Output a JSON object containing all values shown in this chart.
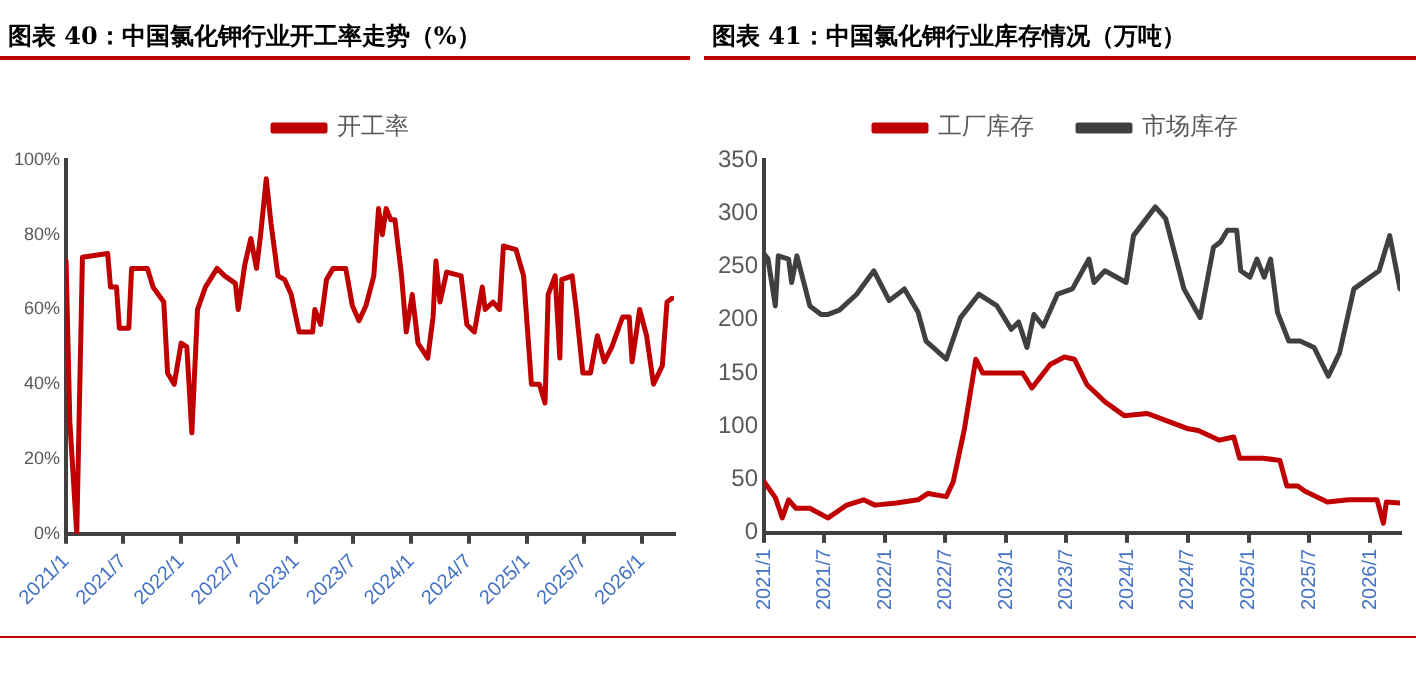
{
  "chart_data": [
    {
      "type": "line",
      "title": "图表 40：中国氯化钾行业开工率走势（%）",
      "legend": "top",
      "marker": "none",
      "line_style": "solid",
      "grid": false,
      "xlim": [
        "2021-01-01",
        "2026-04-13"
      ],
      "xticks": [
        {
          "value": "2021-01-01",
          "label": "2021/1"
        },
        {
          "value": "2021-07-01",
          "label": "2021/7"
        },
        {
          "value": "2022-01-01",
          "label": "2022/1"
        },
        {
          "value": "2022-07-01",
          "label": "2022/7"
        },
        {
          "value": "2023-01-01",
          "label": "2023/1"
        },
        {
          "value": "2023-07-01",
          "label": "2023/7"
        },
        {
          "value": "2024-01-01",
          "label": "2024/1"
        },
        {
          "value": "2024-07-01",
          "label": "2024/7"
        },
        {
          "value": "2025-01-01",
          "label": "2025/1"
        },
        {
          "value": "2025-07-01",
          "label": "2025/7"
        },
        {
          "value": "2026-01-01",
          "label": "2026/1"
        }
      ],
      "ylim": [
        0,
        100
      ],
      "yticks": [
        {
          "value": 0,
          "label": "0%"
        },
        {
          "value": 20,
          "label": "20%"
        },
        {
          "value": 40,
          "label": "40%"
        },
        {
          "value": 60,
          "label": "60%"
        },
        {
          "value": 80,
          "label": "80%"
        },
        {
          "value": 100,
          "label": "100%"
        }
      ],
      "series": [
        {
          "name": "开工率",
          "color": "#c00000",
          "x": [
            "2021-01-01",
            "2021-01-13",
            "2021-02-04",
            "2021-02-22",
            "2021-05-13",
            "2021-05-22",
            "2021-06-10",
            "2021-06-19",
            "2021-07-19",
            "2021-07-28",
            "2021-09-16",
            "2021-10-04",
            "2021-11-07",
            "2021-11-19",
            "2021-12-10",
            "2022-01-01",
            "2022-01-19",
            "2022-02-04",
            "2022-02-22",
            "2022-03-19",
            "2022-04-25",
            "2022-05-19",
            "2022-06-22",
            "2022-07-01",
            "2022-07-22",
            "2022-08-10",
            "2022-08-28",
            "2022-09-10",
            "2022-09-28",
            "2022-10-13",
            "2022-11-04",
            "2022-11-25",
            "2022-12-16",
            "2023-01-10",
            "2023-02-22",
            "2023-03-01",
            "2023-03-19",
            "2023-04-07",
            "2023-04-28",
            "2023-06-07",
            "2023-06-28",
            "2023-07-19",
            "2023-08-10",
            "2023-09-04",
            "2023-09-19",
            "2023-10-01",
            "2023-10-13",
            "2023-10-28",
            "2023-11-10",
            "2023-12-01",
            "2023-12-16",
            "2024-01-04",
            "2024-01-22",
            "2024-02-22",
            "2024-03-10",
            "2024-03-19",
            "2024-04-01",
            "2024-04-22",
            "2024-06-07",
            "2024-06-25",
            "2024-07-19",
            "2024-08-13",
            "2024-08-22",
            "2024-09-16",
            "2024-10-07",
            "2024-10-19",
            "2024-11-28",
            "2024-12-22",
            "2025-01-16",
            "2025-02-10",
            "2025-02-28",
            "2025-03-10",
            "2025-04-01",
            "2025-04-16",
            "2025-04-22",
            "2025-05-25",
            "2025-06-07",
            "2025-06-28",
            "2025-07-22",
            "2025-08-13",
            "2025-09-04",
            "2025-09-28",
            "2025-11-01",
            "2025-11-22",
            "2025-12-01",
            "2025-12-25",
            "2026-01-16",
            "2026-02-07",
            "2026-03-07",
            "2026-03-22",
            "2026-04-07"
          ],
          "values": [
            73,
            30,
            0,
            74,
            75,
            66,
            66,
            55,
            55,
            71,
            71,
            66,
            62,
            43,
            40,
            51,
            50,
            27,
            60,
            66,
            71,
            69,
            67,
            60,
            72,
            79,
            71,
            80,
            95,
            83,
            69,
            68,
            64,
            54,
            54,
            60,
            56,
            68,
            71,
            71,
            61,
            57,
            61,
            69,
            87,
            80,
            87,
            84,
            84,
            69,
            54,
            64,
            51,
            47,
            58,
            73,
            62,
            70,
            69,
            56,
            54,
            66,
            60,
            62,
            60,
            77,
            76,
            69,
            40,
            40,
            35,
            64,
            69,
            47,
            68,
            69,
            60,
            43,
            43,
            53,
            46,
            50,
            58,
            58,
            46,
            60,
            53,
            40,
            45,
            62,
            63
          ]
        }
      ]
    },
    {
      "type": "line",
      "title": "图表 41：中国氯化钾行业库存情况（万吨）",
      "legend": "top",
      "marker": "none",
      "line_style": "solid",
      "grid": false,
      "xlim": [
        "2021-01-01",
        "2026-04-01"
      ],
      "xticks": [
        {
          "value": "2021-01-01",
          "label": "2021/1"
        },
        {
          "value": "2021-07-01",
          "label": "2021/7"
        },
        {
          "value": "2022-01-01",
          "label": "2022/1"
        },
        {
          "value": "2022-07-01",
          "label": "2022/7"
        },
        {
          "value": "2023-01-01",
          "label": "2023/1"
        },
        {
          "value": "2023-07-01",
          "label": "2023/7"
        },
        {
          "value": "2024-01-01",
          "label": "2024/1"
        },
        {
          "value": "2024-07-01",
          "label": "2024/7"
        },
        {
          "value": "2025-01-01",
          "label": "2025/1"
        },
        {
          "value": "2025-07-01",
          "label": "2025/7"
        },
        {
          "value": "2026-01-01",
          "label": "2026/1"
        }
      ],
      "ylim": [
        0,
        350
      ],
      "yticks": [
        0,
        50,
        100,
        150,
        200,
        250,
        300,
        350
      ],
      "series": [
        {
          "name": "工厂库存",
          "color": "#c00000",
          "x": [
            "2021-01-01",
            "2021-02-04",
            "2021-02-25",
            "2021-03-16",
            "2021-04-07",
            "2021-05-19",
            "2021-07-13",
            "2021-09-07",
            "2021-10-28",
            "2021-12-01",
            "2022-02-04",
            "2022-04-10",
            "2022-05-10",
            "2022-07-04",
            "2022-07-25",
            "2022-08-28",
            "2022-10-01",
            "2022-10-22",
            "2022-12-04",
            "2023-01-16",
            "2023-02-19",
            "2023-03-19",
            "2023-05-13",
            "2023-06-25",
            "2023-07-25",
            "2023-09-01",
            "2023-10-25",
            "2023-12-22",
            "2024-03-01",
            "2024-04-13",
            "2024-06-28",
            "2024-08-01",
            "2024-10-04",
            "2024-11-16",
            "2024-12-04",
            "2025-02-13",
            "2025-04-04",
            "2025-04-25",
            "2025-05-28",
            "2025-06-19",
            "2025-08-25",
            "2025-10-28",
            "2026-01-22",
            "2026-02-10",
            "2026-02-19",
            "2026-04-01"
          ],
          "values": [
            48,
            33,
            14,
            31,
            23,
            23,
            14,
            26,
            31,
            26,
            28,
            31,
            37,
            34,
            48,
            98,
            163,
            150,
            150,
            150,
            150,
            136,
            158,
            165,
            163,
            139,
            123,
            110,
            112,
            107,
            98,
            96,
            87,
            90,
            70,
            70,
            68,
            44,
            44,
            39,
            29,
            31,
            31,
            9,
            29,
            28
          ]
        },
        {
          "name": "市场库存",
          "color": "#404040",
          "x": [
            "2021-01-01",
            "2021-01-13",
            "2021-02-04",
            "2021-02-13",
            "2021-03-16",
            "2021-03-25",
            "2021-04-10",
            "2021-05-19",
            "2021-06-22",
            "2021-07-13",
            "2021-08-16",
            "2021-10-07",
            "2021-11-28",
            "2022-01-13",
            "2022-02-28",
            "2022-04-10",
            "2022-05-04",
            "2022-07-04",
            "2022-08-16",
            "2022-10-10",
            "2022-12-04",
            "2023-01-16",
            "2023-02-07",
            "2023-03-04",
            "2023-03-25",
            "2023-04-22",
            "2023-06-04",
            "2023-07-19",
            "2023-09-07",
            "2023-09-22",
            "2023-10-25",
            "2023-12-28",
            "2024-01-19",
            "2024-03-25",
            "2024-04-25",
            "2024-06-19",
            "2024-08-07",
            "2024-09-16",
            "2024-10-07",
            "2024-10-28",
            "2024-11-25",
            "2024-12-07",
            "2025-01-04",
            "2025-01-25",
            "2025-02-16",
            "2025-03-07",
            "2025-03-28",
            "2025-05-01",
            "2025-06-04",
            "2025-07-16",
            "2025-08-28",
            "2025-10-01",
            "2025-11-13",
            "2026-01-28",
            "2026-03-01",
            "2026-04-01"
          ],
          "values": [
            262,
            257,
            213,
            260,
            257,
            235,
            260,
            213,
            205,
            205,
            209,
            224,
            246,
            218,
            229,
            207,
            180,
            163,
            202,
            224,
            213,
            191,
            198,
            174,
            205,
            194,
            224,
            229,
            257,
            235,
            246,
            235,
            279,
            306,
            295,
            229,
            202,
            268,
            273,
            284,
            284,
            246,
            240,
            257,
            240,
            257,
            207,
            180,
            180,
            174,
            147,
            169,
            229,
            246,
            279,
            229
          ]
        }
      ]
    }
  ]
}
